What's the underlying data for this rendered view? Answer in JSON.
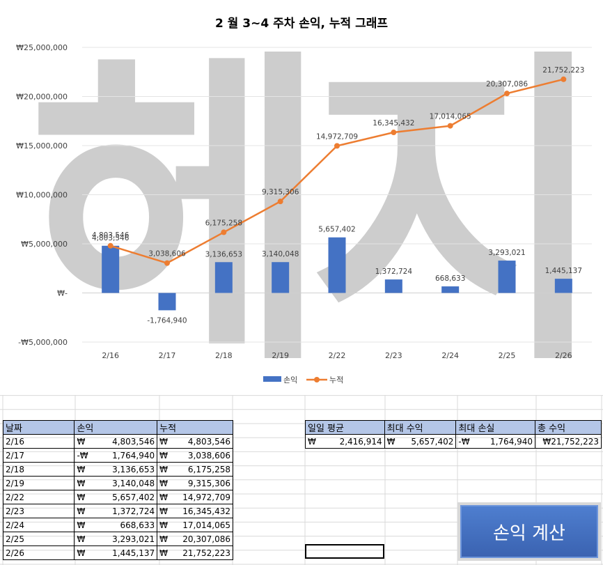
{
  "chart_data": {
    "type": "bar+line",
    "title": "2 월 3~4 주차 손익, 누적 그래프",
    "categories": [
      "2/16",
      "2/17",
      "2/18",
      "2/19",
      "2/22",
      "2/23",
      "2/24",
      "2/25",
      "2/26"
    ],
    "series": [
      {
        "name": "손익",
        "type": "bar",
        "color": "#4472c4",
        "values": [
          4803546,
          -1764940,
          3136653,
          3140048,
          5657402,
          1372724,
          668633,
          3293021,
          1445137
        ],
        "labels": [
          "4,803,546",
          "-1,764,940",
          "3,136,653",
          "3,140,048",
          "5,657,402",
          "1,372,724",
          "668,633",
          "3,293,021",
          "1,445,137"
        ]
      },
      {
        "name": "누적",
        "type": "line",
        "color": "#ed7d31",
        "values": [
          4803546,
          3038606,
          6175258,
          9315306,
          14972709,
          16345432,
          17014065,
          20307086,
          21752223
        ],
        "labels": [
          "4,803,546",
          "3,038,606",
          "6,175,258",
          "9,315,306",
          "14,972,709",
          "16,345,432",
          "17,014,065",
          "20,307,086",
          "21,752,223"
        ]
      }
    ],
    "ylim": [
      -5000000,
      25000000
    ],
    "yticks": [
      -5000000,
      0,
      5000000,
      10000000,
      15000000,
      20000000,
      25000000
    ],
    "ytick_labels": [
      "-₩5,000,000",
      "₩-",
      "₩5,000,000",
      "₩10,000,000",
      "₩15,000,000",
      "₩20,000,000",
      "₩25,000,000"
    ],
    "legend_position": "bottom",
    "grid": true
  },
  "watermark": {
    "text": "헤지"
  },
  "table1": {
    "headers": [
      "날짜",
      "손익",
      "누적"
    ],
    "currency": "₩",
    "rows": [
      {
        "date": "2/16",
        "pl": "4,803,546",
        "pl_prefix": "₩",
        "cum": "4,803,546"
      },
      {
        "date": "2/17",
        "pl": "1,764,940",
        "pl_prefix": "-₩",
        "cum": "3,038,606"
      },
      {
        "date": "2/18",
        "pl": "3,136,653",
        "pl_prefix": "₩",
        "cum": "6,175,258"
      },
      {
        "date": "2/19",
        "pl": "3,140,048",
        "pl_prefix": "₩",
        "cum": "9,315,306"
      },
      {
        "date": "2/22",
        "pl": "5,657,402",
        "pl_prefix": "₩",
        "cum": "14,972,709"
      },
      {
        "date": "2/23",
        "pl": "1,372,724",
        "pl_prefix": "₩",
        "cum": "16,345,432"
      },
      {
        "date": "2/24",
        "pl": "668,633",
        "pl_prefix": "₩",
        "cum": "17,014,065"
      },
      {
        "date": "2/25",
        "pl": "3,293,021",
        "pl_prefix": "₩",
        "cum": "20,307,086"
      },
      {
        "date": "2/26",
        "pl": "1,445,137",
        "pl_prefix": "₩",
        "cum": "21,752,223"
      }
    ]
  },
  "table2": {
    "headers": [
      "일일 평균",
      "최대 수익",
      "최대 손실",
      "총 수익"
    ],
    "values": [
      {
        "prefix": "₩",
        "value": "2,416,914"
      },
      {
        "prefix": "₩",
        "value": "5,657,402"
      },
      {
        "prefix": "-₩",
        "value": "1,764,940"
      },
      {
        "prefix": "",
        "value": "₩21,752,223"
      }
    ]
  },
  "button": {
    "label": "손익 계산"
  }
}
